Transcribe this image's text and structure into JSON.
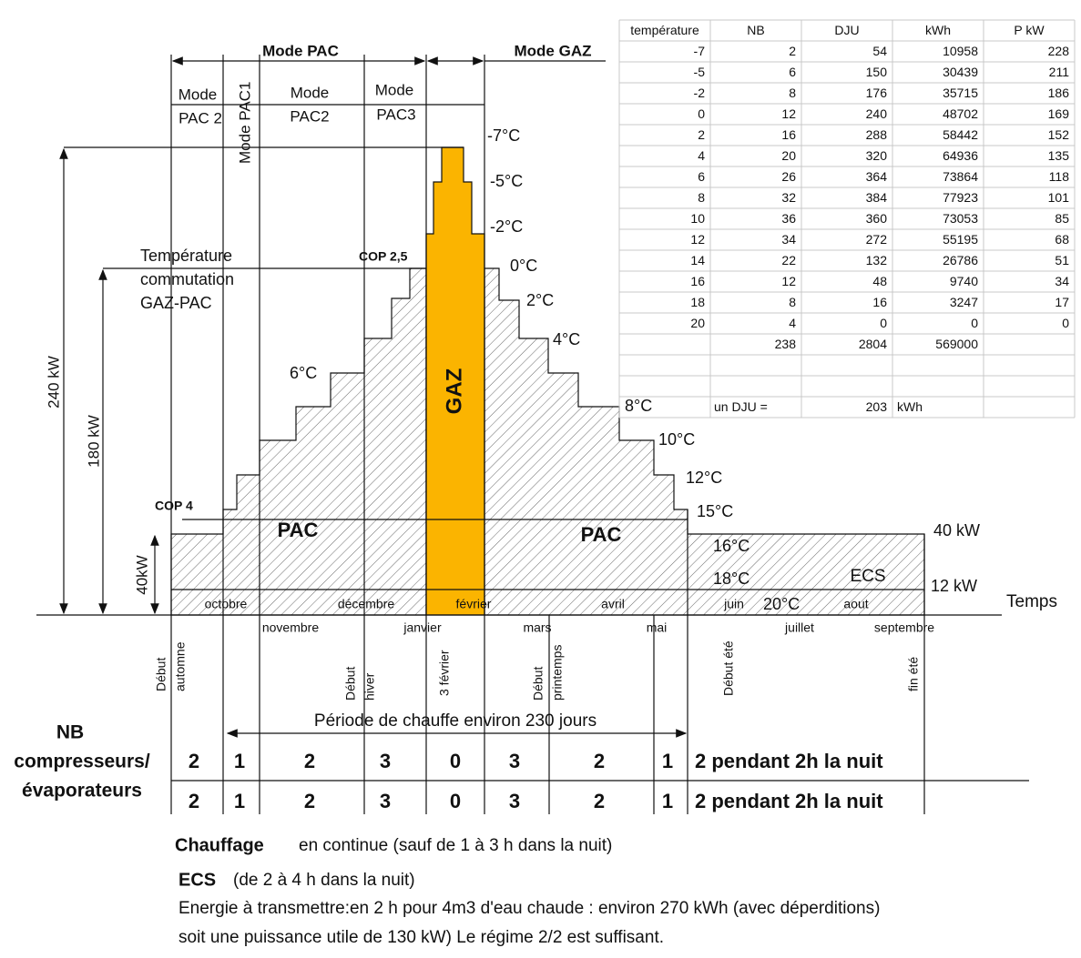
{
  "modes": {
    "pac": "Mode PAC",
    "gaz": "Mode GAZ",
    "pac2a": [
      "Mode",
      "PAC 2"
    ],
    "pac1": "Mode PAC1",
    "pac2b": [
      "Mode",
      "PAC2"
    ],
    "pac3": [
      "Mode",
      "PAC3"
    ]
  },
  "temperatures": [
    "-7°C",
    "-5°C",
    "-2°C",
    "0°C",
    "2°C",
    "4°C",
    "6°C",
    "8°C",
    "10°C",
    "12°C",
    "15°C",
    "16°C",
    "18°C",
    "20°C"
  ],
  "powers": {
    "p240": "240 kW",
    "p180": "180 kW",
    "p40": "40kW",
    "right40": "40 kW",
    "right12": "12 kW"
  },
  "labels": {
    "commutation": [
      "Température",
      "commutation",
      "GAZ-PAC"
    ],
    "cop25": "COP 2,5",
    "cop4": "COP 4",
    "gaz": "GAZ",
    "pac_left": "PAC",
    "pac_right": "PAC",
    "ecs": "ECS",
    "temps": "Temps"
  },
  "months_inline": [
    "octobre",
    "décembre",
    "février",
    "avril",
    "juin",
    "aout"
  ],
  "months_below": [
    "novembre",
    "janvier",
    "mars",
    "mai",
    "juillet",
    "septembre"
  ],
  "events": [
    [
      "Début",
      "automne"
    ],
    [
      "Début",
      "hiver"
    ],
    [
      "3 février"
    ],
    [
      "Début",
      "printemps"
    ],
    [
      "Début été"
    ],
    [
      "fin été"
    ]
  ],
  "period": "Période de chauffe environ 230 jours",
  "compressors": {
    "label": [
      "NB",
      "compresseurs/",
      "évaporateurs"
    ],
    "rows": [
      [
        2,
        1,
        2,
        3,
        0,
        3,
        2,
        1,
        "2 pendant 2h la nuit"
      ],
      [
        2,
        1,
        2,
        3,
        0,
        3,
        2,
        1,
        "2 pendant 2h la nuit"
      ]
    ]
  },
  "notes": {
    "chauffage_title": "Chauffage",
    "chauffage_text": "en continue (sauf de 1 à 3 h dans la nuit)",
    "ecs_title": "ECS",
    "ecs_text": "(de 2 à 4 h dans la nuit)",
    "line3": "Energie à transmettre:en 2 h pour 4m3 d'eau chaude : environ 270 kWh  (avec déperditions)",
    "line4": "soit une puissance utile de 130 kW) Le régime 2/2  est suffisant."
  },
  "table": {
    "header": [
      "température",
      "NB",
      "DJU",
      "kWh",
      "P kW"
    ],
    "rows": [
      [
        -7,
        2,
        54,
        10958,
        228
      ],
      [
        -5,
        6,
        150,
        30439,
        211
      ],
      [
        -2,
        8,
        176,
        35715,
        186
      ],
      [
        0,
        12,
        240,
        48702,
        169
      ],
      [
        2,
        16,
        288,
        58442,
        152
      ],
      [
        4,
        20,
        320,
        64936,
        135
      ],
      [
        6,
        26,
        364,
        73864,
        118
      ],
      [
        8,
        32,
        384,
        77923,
        101
      ],
      [
        10,
        36,
        360,
        73053,
        85
      ],
      [
        12,
        34,
        272,
        55195,
        68
      ],
      [
        14,
        22,
        132,
        26786,
        51
      ],
      [
        16,
        12,
        48,
        9740,
        34
      ],
      [
        18,
        8,
        16,
        3247,
        17
      ],
      [
        20,
        4,
        0,
        0,
        0
      ]
    ],
    "totals": [
      238,
      2804,
      569000
    ],
    "dju": {
      "label": "un DJU =",
      "value": 203,
      "unit": "kWh"
    }
  }
}
